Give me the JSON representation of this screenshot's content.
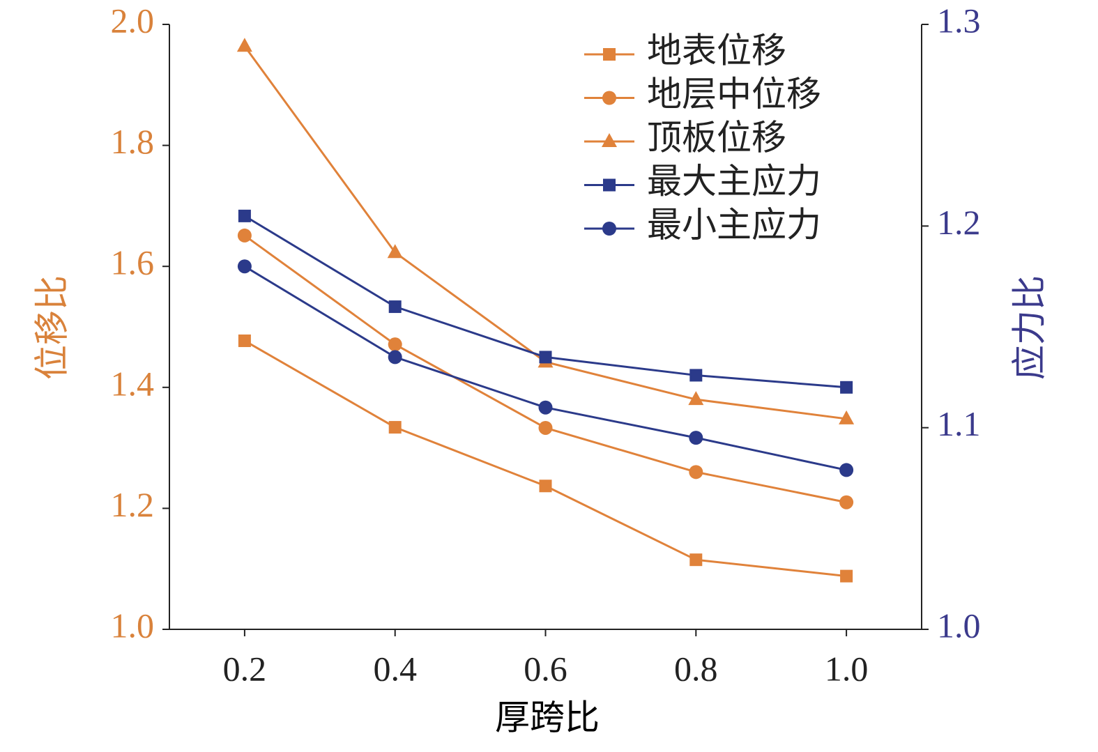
{
  "chart_data": {
    "type": "line",
    "x_label": "厚跨比",
    "y_label": "位移比",
    "y2_label": "应力比",
    "x": [
      0.2,
      0.4,
      0.6,
      0.8,
      1.0
    ],
    "xlim": [
      0.1,
      1.1
    ],
    "xticks": [
      0.2,
      0.4,
      {
        "value": 0.6,
        "label": "0.6"
      },
      0.8,
      {
        "value": 1.0,
        "label": "1.0"
      }
    ],
    "ylim": [
      1.0,
      2.0
    ],
    "yticks": [
      {
        "value": 1.0,
        "label": "1.0"
      },
      1.2,
      1.4,
      1.6,
      1.8,
      {
        "value": 2.0,
        "label": "2.0"
      }
    ],
    "y2lim": [
      1.0,
      1.3
    ],
    "y2ticks": [
      {
        "value": 1.0,
        "label": "1.0"
      },
      1.1,
      1.2,
      1.3
    ],
    "y_color": "#d9823b",
    "y2_color": "#3b3a8c",
    "legend": "upper right",
    "series": [
      {
        "name": "地表位移",
        "color": "#e0823a",
        "marker": "square",
        "values": [
          1.477,
          1.334,
          1.237,
          1.115,
          1.088
        ]
      },
      {
        "name": "地层中位移",
        "color": "#e0823a",
        "marker": "circle",
        "values": [
          1.651,
          1.471,
          1.333,
          1.26,
          1.21
        ]
      },
      {
        "name": "顶板位移",
        "color": "#e0823a",
        "marker": "triangle",
        "values": [
          1.964,
          1.623,
          1.442,
          1.38,
          1.348
        ]
      },
      {
        "name": "最大主应力",
        "color": "#2b3a8a",
        "marker": "square",
        "axis": "y2",
        "values": [
          1.205,
          1.16,
          1.135,
          1.126,
          1.12
        ]
      },
      {
        "name": "最小主应力",
        "color": "#2b3a8a",
        "marker": "circle",
        "axis": "y2",
        "values": [
          1.18,
          1.135,
          1.11,
          1.095,
          1.079
        ]
      }
    ]
  }
}
